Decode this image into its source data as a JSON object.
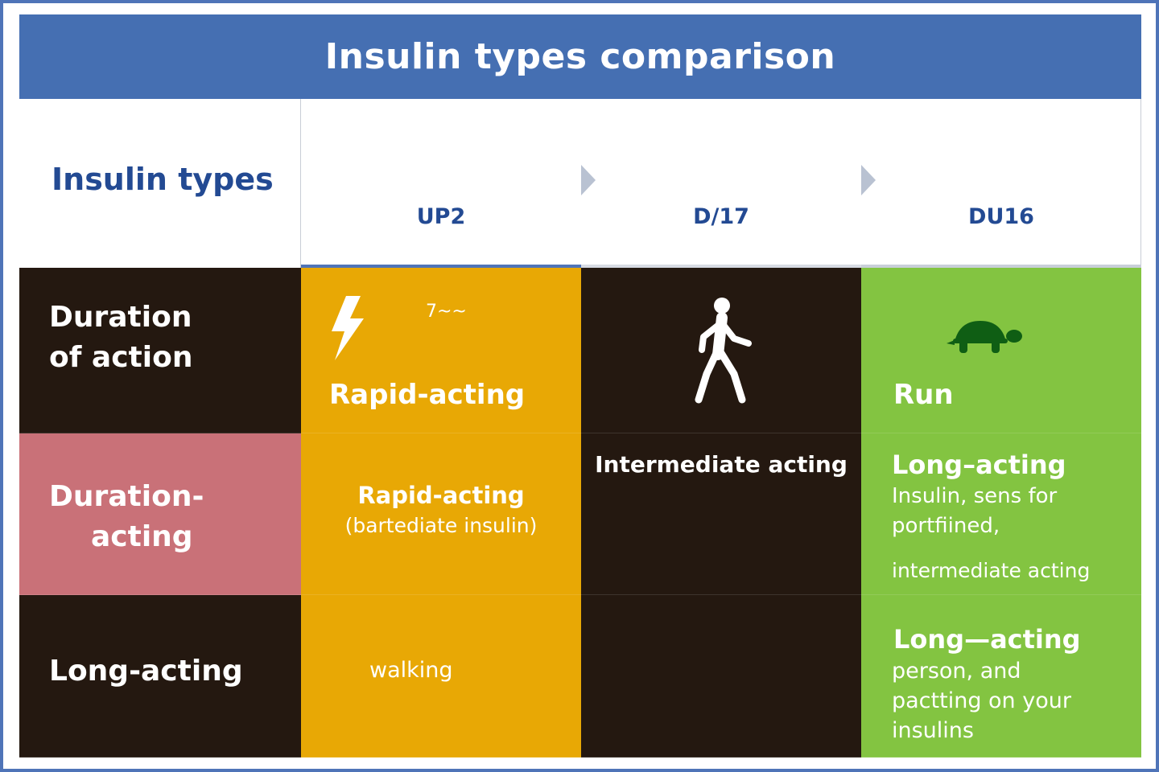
{
  "title": "Insulin types comparison",
  "header": {
    "label": "Insulin types",
    "columns": [
      "UP2",
      "D/17",
      "DU16"
    ]
  },
  "rows": [
    {
      "label_lines": [
        "Duration",
        "of action"
      ],
      "cells": [
        {
          "icon": "lightning-bolt-icon",
          "extra": "7~~",
          "text": "Rapid-acting"
        },
        {
          "icon": "walking-person-icon"
        },
        {
          "icon": "turtle-icon",
          "text": "Run"
        }
      ]
    },
    {
      "label_lines": [
        "Duration-",
        "acting"
      ],
      "cells": [
        {
          "lines": [
            "Rapid-acting",
            "(bartediate insulin)"
          ]
        },
        {
          "lines": [
            "Intermediate acting"
          ]
        },
        {
          "title": "Long–acting",
          "lines": [
            "Insulin, sens for",
            "portfiined,"
          ],
          "footer": "intermediate acting"
        }
      ]
    },
    {
      "label_lines": [
        "Long-acting"
      ],
      "cells": [
        {
          "lines": [
            "walking"
          ]
        },
        {
          "lines": []
        },
        {
          "title": "Long—acting",
          "lines": [
            "person, and",
            "pactting on your",
            "insulins"
          ]
        }
      ]
    }
  ],
  "colors": {
    "title_bg": "#456fb2",
    "header_text": "#234a93",
    "dark": "#241810",
    "amber": "#e8a805",
    "green": "#83c441",
    "rose": "#c97178",
    "turtle": "#0f5e14"
  }
}
